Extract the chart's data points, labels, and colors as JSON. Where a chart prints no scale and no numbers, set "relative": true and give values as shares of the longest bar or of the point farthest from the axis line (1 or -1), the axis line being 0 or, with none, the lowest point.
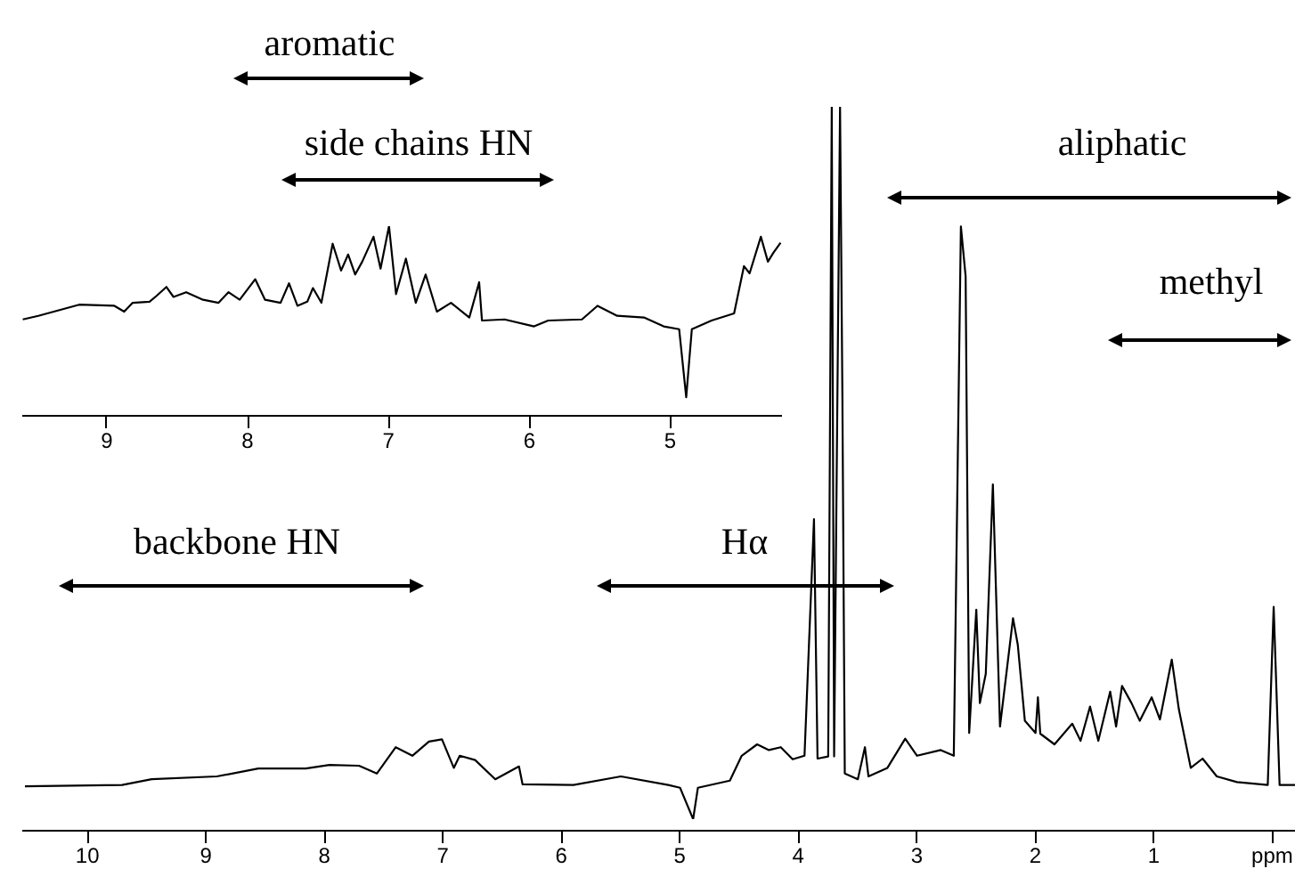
{
  "chart_data": [
    {
      "type": "line",
      "relative": true,
      "xlim": [
        10.55,
        -0.2
      ],
      "xticks": [
        10,
        9,
        8,
        7,
        6,
        5,
        4,
        3,
        2,
        1,
        {
          "value": 0,
          "label": "ppm"
        }
      ],
      "annotations": [
        "aliphatic",
        "methyl",
        "backbone HN",
        "Hα"
      ],
      "x": [
        10.52,
        9.7,
        9.45,
        8.9,
        8.55,
        8.15,
        7.95,
        7.7,
        7.55,
        7.39,
        7.25,
        7.11,
        7.0,
        6.9,
        6.85,
        6.72,
        6.55,
        6.35,
        6.32,
        5.89,
        5.49,
        5.09,
        4.99,
        4.88,
        4.84,
        4.57,
        4.47,
        4.34,
        4.24,
        4.14,
        4.04,
        3.94,
        3.86,
        3.83,
        3.74,
        3.71,
        3.69,
        3.64,
        3.62,
        3.6,
        3.49,
        3.43,
        3.4,
        3.24,
        3.09,
        2.99,
        2.79,
        2.68,
        2.62,
        2.58,
        2.55,
        2.49,
        2.46,
        2.41,
        2.35,
        2.29,
        2.18,
        2.14,
        2.08,
        1.99,
        1.97,
        1.95,
        1.83,
        1.68,
        1.61,
        1.53,
        1.46,
        1.36,
        1.31,
        1.26,
        1.18,
        1.11,
        1.01,
        0.94,
        0.84,
        0.78,
        0.68,
        0.58,
        0.46,
        0.29,
        0.03,
        -0.02,
        -0.07,
        -0.2
      ],
      "series": [
        {
          "color": "#000000",
          "values": [
            0.046,
            0.048,
            0.056,
            0.06,
            0.071,
            0.071,
            0.076,
            0.075,
            0.064,
            0.101,
            0.089,
            0.109,
            0.112,
            0.072,
            0.089,
            0.083,
            0.056,
            0.074,
            0.049,
            0.048,
            0.06,
            0.048,
            0.044,
            0,
            0.044,
            0.054,
            0.089,
            0.105,
            0.097,
            0.101,
            0.084,
            0.089,
            0.421,
            0.085,
            0.088,
            1,
            0.088,
            1,
            0.589,
            0.064,
            0.056,
            0.101,
            0.06,
            0.072,
            0.113,
            0.089,
            0.097,
            0.089,
            0.832,
            0.762,
            0.121,
            0.294,
            0.163,
            0.204,
            0.47,
            0.13,
            0.282,
            0.245,
            0.138,
            0.121,
            0.171,
            0.12,
            0.105,
            0.134,
            0.11,
            0.158,
            0.11,
            0.179,
            0.13,
            0.187,
            0.163,
            0.138,
            0.171,
            0.14,
            0.224,
            0.154,
            0.072,
            0.085,
            0.06,
            0.052,
            0.048,
            0.298,
            0.048,
            0.048
          ]
        }
      ]
    },
    {
      "type": "line",
      "relative": true,
      "xlim": [
        9.6,
        4.2
      ],
      "xticks": [
        9,
        8,
        7,
        6,
        5
      ],
      "annotations": [
        "aromatic",
        "side chains HN"
      ],
      "x": [
        9.59,
        9.48,
        9.19,
        8.94,
        8.87,
        8.81,
        8.69,
        8.64,
        8.57,
        8.52,
        8.43,
        8.31,
        8.2,
        8.13,
        8.05,
        7.94,
        7.87,
        7.76,
        7.7,
        7.64,
        7.57,
        7.53,
        7.47,
        7.39,
        7.33,
        7.28,
        7.23,
        7.18,
        7.1,
        7.05,
        6.99,
        6.94,
        6.87,
        6.8,
        6.73,
        6.65,
        6.55,
        6.42,
        6.35,
        6.33,
        6.17,
        5.96,
        5.86,
        5.62,
        5.51,
        5.37,
        5.18,
        5.04,
        4.93,
        4.88,
        4.84,
        4.7,
        4.54,
        4.47,
        4.43,
        4.35,
        4.3,
        4.26,
        4.21
      ],
      "series": [
        {
          "color": "#000000",
          "values": [
            0.506,
            0.525,
            0.584,
            0.578,
            0.547,
            0.594,
            0.6,
            0.631,
            0.678,
            0.625,
            0.65,
            0.61,
            0.594,
            0.65,
            0.61,
            0.719,
            0.61,
            0.594,
            0.697,
            0.578,
            0.6,
            0.672,
            0.594,
            0.907,
            0.765,
            0.85,
            0.744,
            0.812,
            0.944,
            0.775,
            1,
            0.64,
            0.828,
            0.594,
            0.744,
            0.547,
            0.594,
            0.516,
            0.703,
            0.5,
            0.506,
            0.469,
            0.5,
            0.506,
            0.578,
            0.525,
            0.516,
            0.469,
            0.454,
            0.094,
            0.454,
            0.5,
            0.538,
            0.788,
            0.75,
            0.944,
            0.812,
            0.86,
            0.912
          ]
        }
      ]
    }
  ]
}
